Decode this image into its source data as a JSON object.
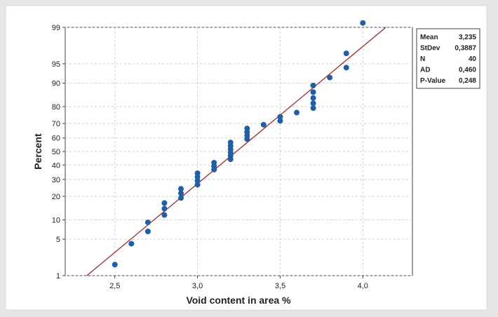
{
  "chart_data": {
    "type": "scatter",
    "subtype": "normal probability plot",
    "title": "",
    "xlabel": "Void content in area %",
    "ylabel": "Percent",
    "xlim": [
      2.2,
      4.3
    ],
    "x_ticks": [
      "2,5",
      "3,0",
      "3,5",
      "4,0"
    ],
    "x_tick_values": [
      2.5,
      3.0,
      3.5,
      4.0
    ],
    "y_scale": "normal-probability",
    "y_ticks": [
      "1",
      "5",
      "10",
      "20",
      "30",
      "40",
      "50",
      "60",
      "70",
      "80",
      "90",
      "95",
      "99"
    ],
    "y_tick_values": [
      1,
      5,
      10,
      20,
      30,
      40,
      50,
      60,
      70,
      80,
      90,
      95,
      99
    ],
    "grid": true,
    "marker_color": "#1f5fa8",
    "fit_line_color": "#a52a2a",
    "fit_line": {
      "mean": 3.235,
      "stdev": 0.3887
    },
    "points": [
      {
        "x": 2.5,
        "y": 1.7
      },
      {
        "x": 2.6,
        "y": 4.2
      },
      {
        "x": 2.7,
        "y": 6.7
      },
      {
        "x": 2.7,
        "y": 9.2
      },
      {
        "x": 2.8,
        "y": 11.7
      },
      {
        "x": 2.8,
        "y": 14.2
      },
      {
        "x": 2.8,
        "y": 16.7
      },
      {
        "x": 2.9,
        "y": 19.2
      },
      {
        "x": 2.9,
        "y": 21.7
      },
      {
        "x": 2.9,
        "y": 24.2
      },
      {
        "x": 3.0,
        "y": 26.7
      },
      {
        "x": 3.0,
        "y": 29.2
      },
      {
        "x": 3.0,
        "y": 31.7
      },
      {
        "x": 3.0,
        "y": 34.2
      },
      {
        "x": 3.1,
        "y": 36.7
      },
      {
        "x": 3.1,
        "y": 39.2
      },
      {
        "x": 3.1,
        "y": 41.7
      },
      {
        "x": 3.2,
        "y": 44.2
      },
      {
        "x": 3.2,
        "y": 46.7
      },
      {
        "x": 3.2,
        "y": 49.2
      },
      {
        "x": 3.2,
        "y": 51.7
      },
      {
        "x": 3.2,
        "y": 54.2
      },
      {
        "x": 3.2,
        "y": 56.7
      },
      {
        "x": 3.3,
        "y": 59.2
      },
      {
        "x": 3.3,
        "y": 61.7
      },
      {
        "x": 3.3,
        "y": 64.2
      },
      {
        "x": 3.3,
        "y": 66.7
      },
      {
        "x": 3.4,
        "y": 69.2
      },
      {
        "x": 3.5,
        "y": 71.7
      },
      {
        "x": 3.5,
        "y": 74.2
      },
      {
        "x": 3.6,
        "y": 76.7
      },
      {
        "x": 3.7,
        "y": 79.2
      },
      {
        "x": 3.7,
        "y": 81.7
      },
      {
        "x": 3.7,
        "y": 84.2
      },
      {
        "x": 3.7,
        "y": 86.7
      },
      {
        "x": 3.7,
        "y": 89.2
      },
      {
        "x": 3.8,
        "y": 91.7
      },
      {
        "x": 3.9,
        "y": 94.2
      },
      {
        "x": 3.9,
        "y": 96.7
      },
      {
        "x": 4.0,
        "y": 99.2
      }
    ]
  },
  "stats_box": {
    "rows": [
      {
        "label": "Mean",
        "value": "3,235"
      },
      {
        "label": "StDev",
        "value": "0,3887"
      },
      {
        "label": "N",
        "value": "40"
      },
      {
        "label": "AD",
        "value": "0,460"
      },
      {
        "label": "P-Value",
        "value": "0,248"
      }
    ]
  }
}
